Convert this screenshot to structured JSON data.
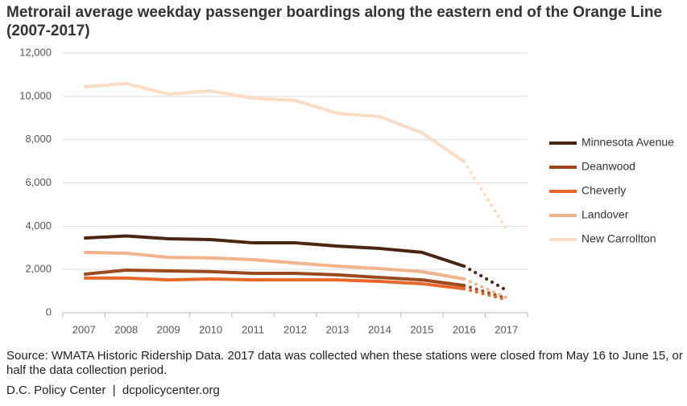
{
  "chart_data": {
    "type": "line",
    "title": "Metrorail average weekday passenger boardings along the eastern end of the Orange Line (2007-2017)",
    "source": "Source: WMATA Historic Ridership Data. 2017 data was collected when these stations were closed from May 16 to June 15, or half the data collection period.",
    "credit": "D.C. Policy Center  |  dcpolicycenter.org",
    "categories": [
      "2007",
      "2008",
      "2009",
      "2010",
      "2011",
      "2012",
      "2013",
      "2014",
      "2015",
      "2016",
      "2017"
    ],
    "series": [
      {
        "name": "Minnesota Avenue",
        "color": "#4a2511",
        "values": [
          3450,
          3550,
          3420,
          3380,
          3230,
          3230,
          3080,
          2970,
          2790,
          2150,
          1040
        ]
      },
      {
        "name": "Deanwood",
        "color": "#9a4a1c",
        "values": [
          1780,
          1970,
          1930,
          1900,
          1820,
          1820,
          1750,
          1630,
          1520,
          1260,
          670
        ]
      },
      {
        "name": "Cheverly",
        "color": "#e8682c",
        "values": [
          1600,
          1600,
          1520,
          1560,
          1520,
          1520,
          1520,
          1450,
          1340,
          1110,
          600
        ]
      },
      {
        "name": "Landover",
        "color": "#f2b48c",
        "values": [
          2790,
          2750,
          2560,
          2530,
          2450,
          2300,
          2150,
          2040,
          1900,
          1560,
          700
        ]
      },
      {
        "name": "New Carrollton",
        "color": "#fbdcc6",
        "values": [
          10440,
          10590,
          10100,
          10250,
          9920,
          9810,
          9210,
          9060,
          8320,
          6980,
          3860
        ]
      }
    ],
    "ylim": [
      0,
      12000
    ],
    "yticks": [
      0,
      {
        "value": 2000,
        "label": "2,000"
      },
      {
        "value": 4000,
        "label": "4,000"
      },
      {
        "value": 6000,
        "label": "6,000"
      },
      {
        "value": 8000,
        "label": "8,000"
      },
      {
        "value": 10000,
        "label": "10,000"
      },
      {
        "value": 12000,
        "label": "12,000"
      }
    ],
    "grid": true
  }
}
